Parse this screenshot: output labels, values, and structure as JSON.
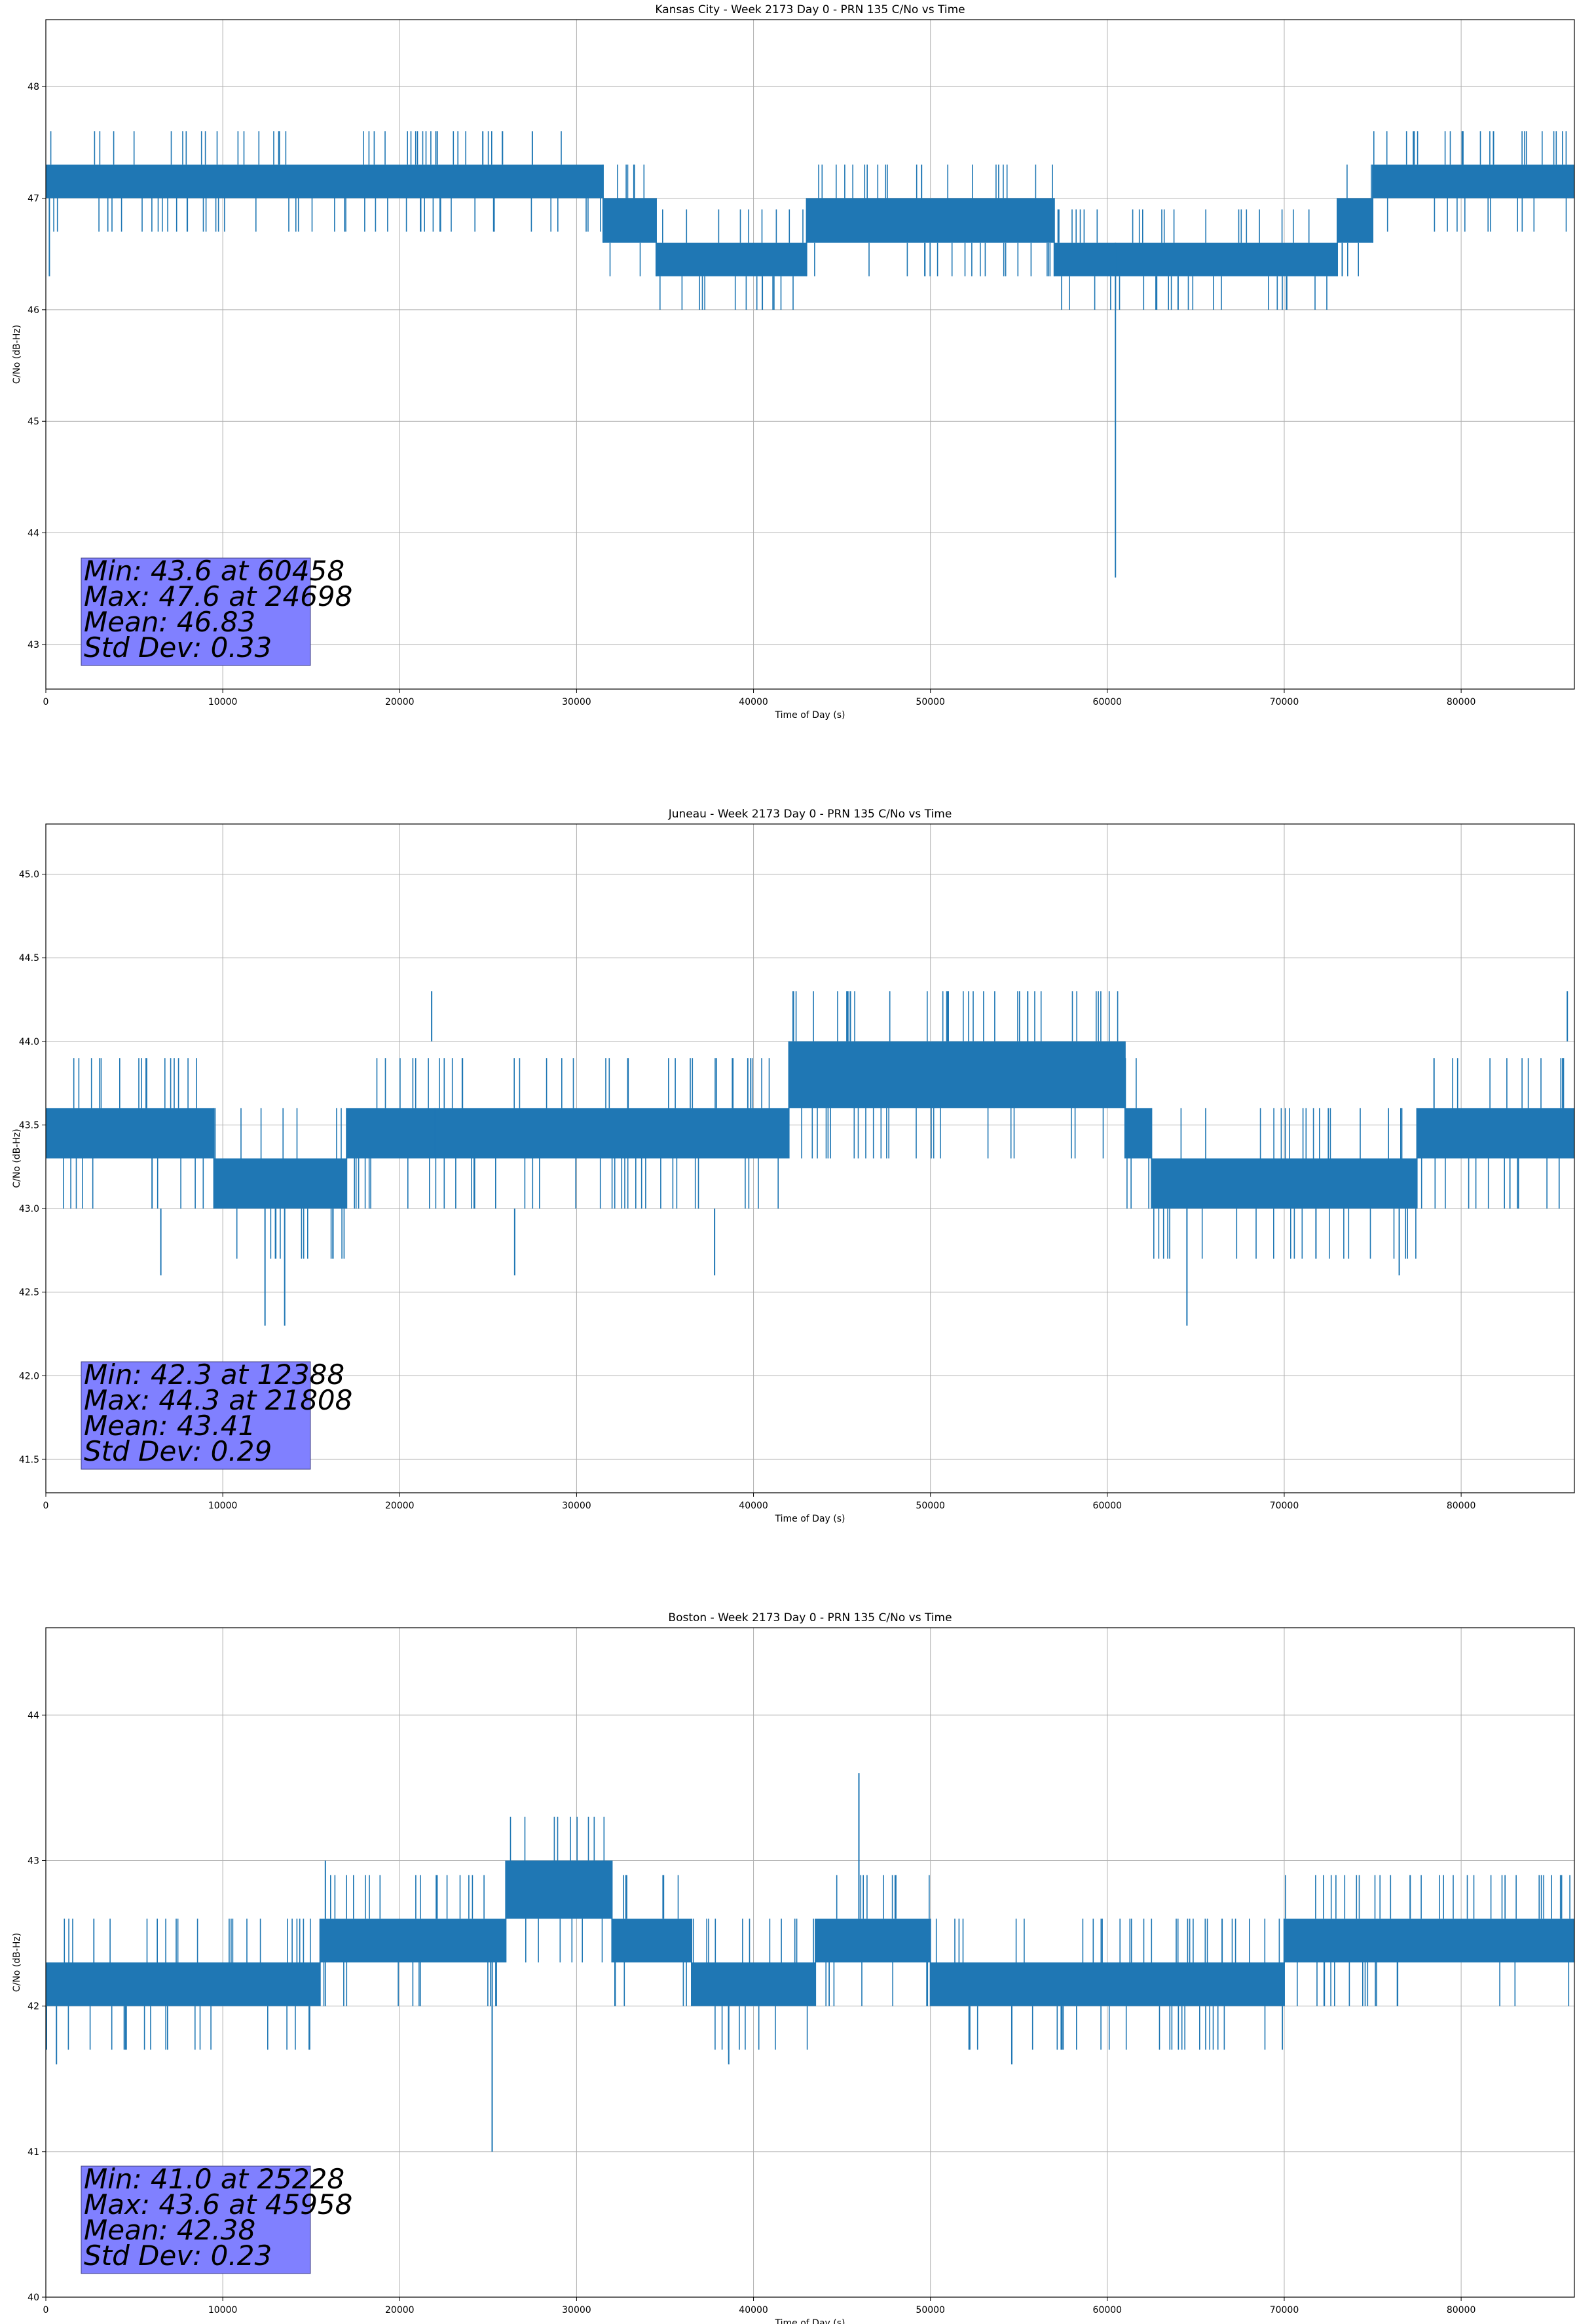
{
  "chart_data": [
    {
      "type": "line",
      "title": "Kansas City - Week 2173 Day 0 - PRN 135 C/No vs Time",
      "xlabel": "Time of Day (s)",
      "ylabel": "C/No (dB-Hz)",
      "xlim": [
        0,
        86400
      ],
      "ylim": [
        42.6,
        48.6
      ],
      "xticks": [
        0,
        10000,
        20000,
        30000,
        40000,
        50000,
        60000,
        70000,
        80000
      ],
      "yticks": [
        43,
        44,
        45,
        46,
        47,
        48
      ],
      "ytick_labels": [
        "43",
        "44",
        "45",
        "46",
        "47",
        "48"
      ],
      "grid": true,
      "series_color": "#1f77b4",
      "band_segments": [
        {
          "x0": 0,
          "x1": 31500,
          "lo": 47.0,
          "hi": 47.3
        },
        {
          "x0": 31500,
          "x1": 34500,
          "lo": 46.6,
          "hi": 47.0
        },
        {
          "x0": 34500,
          "x1": 43000,
          "lo": 46.3,
          "hi": 46.6
        },
        {
          "x0": 43000,
          "x1": 57000,
          "lo": 46.6,
          "hi": 47.0
        },
        {
          "x0": 57000,
          "x1": 73000,
          "lo": 46.3,
          "hi": 46.6
        },
        {
          "x0": 73000,
          "x1": 75000,
          "lo": 46.6,
          "hi": 47.0
        },
        {
          "x0": 75000,
          "x1": 86400,
          "lo": 47.0,
          "hi": 47.3
        }
      ],
      "spikes": [
        {
          "x": 200,
          "y0": 47.0,
          "y1": 46.3
        },
        {
          "x": 24698,
          "y0": 47.3,
          "y1": 47.6
        },
        {
          "x": 27500,
          "y0": 47.3,
          "y1": 47.6
        },
        {
          "x": 40500,
          "y0": 46.3,
          "y1": 46.0
        },
        {
          "x": 49500,
          "y0": 47.0,
          "y1": 47.3
        },
        {
          "x": 60458,
          "y0": 46.6,
          "y1": 43.6
        },
        {
          "x": 64000,
          "y0": 46.3,
          "y1": 46.0
        },
        {
          "x": 77300,
          "y0": 47.3,
          "y1": 47.6
        },
        {
          "x": 80100,
          "y0": 47.3,
          "y1": 47.6
        }
      ],
      "stats": {
        "min": "Min: 43.6 at 60458",
        "max": "Max: 47.6 at 24698",
        "mean": "Mean: 46.83",
        "std": "Std Dev: 0.33"
      }
    },
    {
      "type": "line",
      "title": "Juneau - Week 2173 Day 0 - PRN 135 C/No vs Time",
      "xlabel": "Time of Day (s)",
      "ylabel": "C/No (dB-Hz)",
      "xlim": [
        0,
        86400
      ],
      "ylim": [
        41.3,
        45.3
      ],
      "xticks": [
        0,
        10000,
        20000,
        30000,
        40000,
        50000,
        60000,
        70000,
        80000
      ],
      "yticks": [
        41.5,
        42.0,
        42.5,
        43.0,
        43.5,
        44.0,
        44.5,
        45.0
      ],
      "ytick_labels": [
        "41.5",
        "42.0",
        "42.5",
        "43.0",
        "43.5",
        "44.0",
        "44.5",
        "45.0"
      ],
      "grid": true,
      "series_color": "#1f77b4",
      "band_segments": [
        {
          "x0": 0,
          "x1": 9500,
          "lo": 43.3,
          "hi": 43.6
        },
        {
          "x0": 9500,
          "x1": 17000,
          "lo": 43.0,
          "hi": 43.3
        },
        {
          "x0": 17000,
          "x1": 22000,
          "lo": 43.3,
          "hi": 43.6
        },
        {
          "x0": 22000,
          "x1": 42000,
          "lo": 43.3,
          "hi": 43.6
        },
        {
          "x0": 42000,
          "x1": 61000,
          "lo": 43.6,
          "hi": 44.0
        },
        {
          "x0": 61000,
          "x1": 62500,
          "lo": 43.3,
          "hi": 43.6
        },
        {
          "x0": 62500,
          "x1": 77500,
          "lo": 43.0,
          "hi": 43.3
        },
        {
          "x0": 77500,
          "x1": 86400,
          "lo": 43.3,
          "hi": 43.6
        }
      ],
      "spikes": [
        {
          "x": 6500,
          "y0": 43.0,
          "y1": 42.6
        },
        {
          "x": 12388,
          "y0": 43.0,
          "y1": 42.3
        },
        {
          "x": 13500,
          "y0": 43.0,
          "y1": 42.3
        },
        {
          "x": 21808,
          "y0": 44.0,
          "y1": 44.3
        },
        {
          "x": 26500,
          "y0": 43.0,
          "y1": 42.6
        },
        {
          "x": 37800,
          "y0": 43.0,
          "y1": 42.6
        },
        {
          "x": 55500,
          "y0": 44.0,
          "y1": 44.3
        },
        {
          "x": 64500,
          "y0": 43.0,
          "y1": 42.3
        },
        {
          "x": 76500,
          "y0": 43.0,
          "y1": 42.6
        },
        {
          "x": 86000,
          "y0": 44.0,
          "y1": 44.3
        }
      ],
      "stats": {
        "min": "Min: 42.3 at 12388",
        "max": "Max: 44.3 at 21808",
        "mean": "Mean: 43.41",
        "std": "Std Dev: 0.29"
      }
    },
    {
      "type": "line",
      "title": "Boston - Week 2173 Day 0 - PRN 135 C/No vs Time",
      "xlabel": "Time of Day (s)",
      "ylabel": "C/No (dB-Hz)",
      "xlim": [
        0,
        86400
      ],
      "ylim": [
        40,
        44.6
      ],
      "xticks": [
        0,
        10000,
        20000,
        30000,
        40000,
        50000,
        60000,
        70000,
        80000
      ],
      "yticks": [
        40,
        41,
        42,
        43,
        44
      ],
      "ytick_labels": [
        "40",
        "41",
        "42",
        "43",
        "44"
      ],
      "grid": true,
      "series_color": "#1f77b4",
      "band_segments": [
        {
          "x0": 0,
          "x1": 15500,
          "lo": 42.0,
          "hi": 42.3
        },
        {
          "x0": 15500,
          "x1": 26000,
          "lo": 42.3,
          "hi": 42.6
        },
        {
          "x0": 26000,
          "x1": 32000,
          "lo": 42.6,
          "hi": 43.0
        },
        {
          "x0": 32000,
          "x1": 36500,
          "lo": 42.3,
          "hi": 42.6
        },
        {
          "x0": 36500,
          "x1": 43500,
          "lo": 42.0,
          "hi": 42.3
        },
        {
          "x0": 43500,
          "x1": 50000,
          "lo": 42.3,
          "hi": 42.6
        },
        {
          "x0": 50000,
          "x1": 70000,
          "lo": 42.0,
          "hi": 42.3
        },
        {
          "x0": 70000,
          "x1": 86400,
          "lo": 42.3,
          "hi": 42.6
        }
      ],
      "spikes": [
        {
          "x": 600,
          "y0": 42.0,
          "y1": 41.6
        },
        {
          "x": 15800,
          "y0": 42.6,
          "y1": 43.0
        },
        {
          "x": 25228,
          "y0": 42.3,
          "y1": 41.0
        },
        {
          "x": 38600,
          "y0": 42.0,
          "y1": 41.6
        },
        {
          "x": 45958,
          "y0": 42.6,
          "y1": 43.6
        },
        {
          "x": 54600,
          "y0": 42.0,
          "y1": 41.6
        }
      ],
      "stats": {
        "min": "Min: 41.0 at 25228",
        "max": "Max: 43.6 at 45958",
        "mean": "Mean: 42.38",
        "std": "Std Dev: 0.23"
      }
    }
  ]
}
